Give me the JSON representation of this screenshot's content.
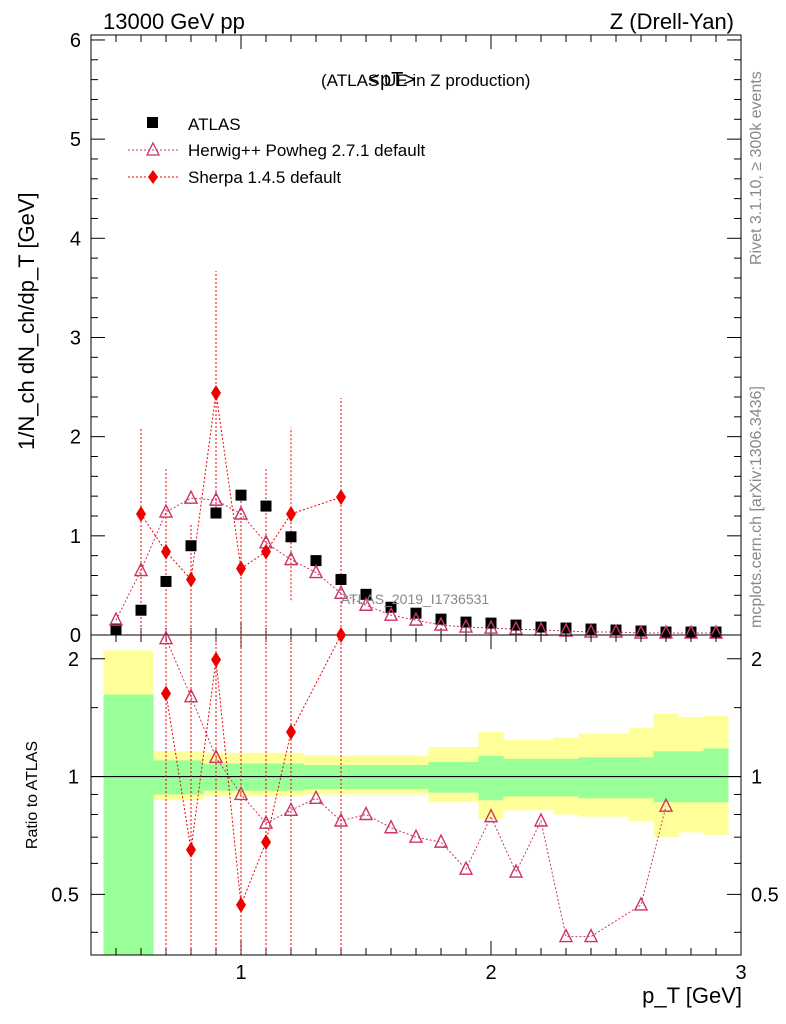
{
  "header": {
    "left": "13000 GeV pp",
    "right": "Z (Drell-Yan)"
  },
  "side": {
    "rivet": "Rivet 3.1.10, ≥ 300k events",
    "mcplots": "mcplots.cern.ch [arXiv:1306.3436]"
  },
  "main": {
    "title_main": "<pT>",
    "title_sub": " (ATLAS UE in Z production)",
    "ylabel": "1/N_ch dN_ch/dp_T [GeV]",
    "watermark": "ATLAS_2019_I1736531"
  },
  "ratio": {
    "ylabel": "Ratio to ATLAS"
  },
  "xaxis": {
    "label": "p_T [GeV]"
  },
  "legend": {
    "atlas": "ATLAS",
    "herwig": "Herwig++ Powheg 2.7.1 default",
    "sherpa": "Sherpa 1.4.5 default"
  },
  "colors": {
    "data": "#000000",
    "herwig": "#cc3366",
    "sherpa": "#ee0000",
    "band_inner": "#99ff99",
    "band_outer": "#ffff99"
  },
  "chart_data": [
    {
      "type": "scatter",
      "panel": "main",
      "xlabel": "p_T [GeV]",
      "ylabel": "1/N_ch dN_ch/dp_T [GeV]",
      "xlim": [
        0.4,
        3.0
      ],
      "ylim": [
        0,
        6.05
      ],
      "x_ticks": [
        "1",
        "2",
        "3"
      ],
      "y_ticks": [
        "0",
        "1",
        "2",
        "3",
        "4",
        "5",
        "6"
      ],
      "legend_position": "top-left",
      "series": [
        {
          "name": "ATLAS",
          "marker": "square",
          "x": [
            0.5,
            0.6,
            0.7,
            0.8,
            0.9,
            1.0,
            1.1,
            1.2,
            1.3,
            1.4,
            1.5,
            1.6,
            1.7,
            1.8,
            1.9,
            2.0,
            2.1,
            2.2,
            2.3,
            2.4,
            2.5,
            2.6,
            2.7,
            2.8,
            2.9
          ],
          "y": [
            0.06,
            0.25,
            0.54,
            0.9,
            1.23,
            1.41,
            1.3,
            0.99,
            0.75,
            0.56,
            0.41,
            0.28,
            0.22,
            0.16,
            0.13,
            0.12,
            0.1,
            0.08,
            0.07,
            0.06,
            0.05,
            0.04,
            0.03,
            0.03,
            0.03
          ]
        },
        {
          "name": "Herwig++ Powheg 2.7.1 default",
          "marker": "open-triangle",
          "x": [
            0.5,
            0.6,
            0.7,
            0.8,
            0.9,
            1.0,
            1.1,
            1.2,
            1.3,
            1.4,
            1.5,
            1.6,
            1.7,
            1.8,
            1.9,
            2.0,
            2.1,
            2.2,
            2.3,
            2.4,
            2.5,
            2.6,
            2.7,
            2.8,
            2.9
          ],
          "y": [
            0.15,
            0.65,
            1.24,
            1.38,
            1.36,
            1.22,
            0.93,
            0.76,
            0.63,
            0.42,
            0.3,
            0.2,
            0.15,
            0.1,
            0.08,
            0.07,
            0.06,
            0.05,
            0.04,
            0.03,
            0.03,
            0.02,
            0.02,
            0.02,
            0.02
          ],
          "y_err": [
            0.03,
            0.05,
            0.06,
            0.06,
            0.06,
            0.05,
            0.05,
            0.04,
            0.04,
            0.03,
            0.03,
            0.02,
            0.02,
            0.02,
            0.02,
            0.02,
            0.01,
            0.01,
            0.01,
            0.01,
            0.01,
            0.01,
            0.01,
            0.01,
            0.01
          ]
        },
        {
          "name": "Sherpa 1.4.5 default",
          "marker": "diamond",
          "x": [
            0.6,
            0.7,
            0.8,
            0.9,
            1.0,
            1.1,
            1.2,
            1.4
          ],
          "y": [
            1.22,
            0.84,
            0.56,
            2.44,
            0.67,
            0.84,
            1.22,
            1.39
          ],
          "y_lo": [
            0.0,
            0.0,
            0.0,
            1.2,
            0.0,
            0.0,
            0.35,
            0.0
          ],
          "y_hi": [
            2.09,
            1.67,
            1.12,
            3.67,
            1.4,
            1.67,
            2.09,
            2.39
          ]
        }
      ]
    },
    {
      "type": "scatter",
      "panel": "ratio",
      "ylabel": "Ratio to ATLAS",
      "ylim": [
        0.35,
        2.3
      ],
      "log_y": true,
      "y_ticks": [
        "0.5",
        "1",
        "2"
      ],
      "band": {
        "x_edges": [
          0.45,
          0.55,
          0.65,
          0.75,
          0.85,
          0.95,
          1.05,
          1.15,
          1.25,
          1.35,
          1.45,
          1.55,
          1.65,
          1.75,
          1.85,
          1.95,
          2.05,
          2.15,
          2.25,
          2.35,
          2.45,
          2.55,
          2.65,
          2.75,
          2.85,
          2.95
        ],
        "inner_lo": [
          0.35,
          0.35,
          0.9,
          0.9,
          0.92,
          0.92,
          0.92,
          0.92,
          0.93,
          0.93,
          0.93,
          0.93,
          0.93,
          0.91,
          0.91,
          0.87,
          0.89,
          0.89,
          0.89,
          0.88,
          0.88,
          0.88,
          0.86,
          0.86,
          0.86
        ],
        "inner_hi": [
          1.62,
          1.62,
          1.1,
          1.1,
          1.08,
          1.08,
          1.08,
          1.08,
          1.07,
          1.07,
          1.07,
          1.07,
          1.07,
          1.09,
          1.09,
          1.13,
          1.11,
          1.11,
          1.11,
          1.12,
          1.12,
          1.12,
          1.16,
          1.16,
          1.18
        ],
        "outer_lo": [
          0.37,
          0.37,
          0.87,
          0.87,
          0.89,
          0.89,
          0.89,
          0.89,
          0.9,
          0.9,
          0.9,
          0.9,
          0.9,
          0.86,
          0.86,
          0.78,
          0.82,
          0.82,
          0.8,
          0.79,
          0.79,
          0.77,
          0.7,
          0.72,
          0.71
        ],
        "outer_hi": [
          2.1,
          2.1,
          1.16,
          1.16,
          1.15,
          1.15,
          1.15,
          1.15,
          1.13,
          1.13,
          1.13,
          1.13,
          1.13,
          1.19,
          1.19,
          1.3,
          1.24,
          1.24,
          1.26,
          1.29,
          1.29,
          1.33,
          1.45,
          1.42,
          1.43
        ]
      },
      "series": [
        {
          "name": "Herwig++ Powheg 2.7.1 default",
          "x": [
            0.7,
            0.8,
            0.9,
            1.0,
            1.1,
            1.2,
            1.3,
            1.4,
            1.5,
            1.6,
            1.7,
            1.8,
            1.9,
            2.0,
            2.1,
            2.2,
            2.3,
            2.4,
            2.6,
            2.7
          ],
          "y": [
            2.25,
            1.6,
            1.12,
            0.9,
            0.76,
            0.82,
            0.88,
            0.77,
            0.8,
            0.74,
            0.7,
            0.68,
            0.58,
            0.79,
            0.57,
            0.77,
            0.39,
            0.39,
            0.47,
            0.84
          ]
        },
        {
          "name": "Sherpa 1.4.5 default",
          "x": [
            0.7,
            0.8,
            0.9,
            1.0,
            1.1,
            1.2,
            1.4
          ],
          "y": [
            1.63,
            0.65,
            1.99,
            0.47,
            0.68,
            1.3,
            2.3
          ]
        }
      ]
    }
  ]
}
